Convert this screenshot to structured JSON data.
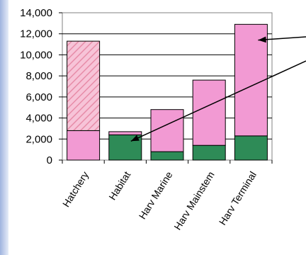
{
  "chart_data": {
    "type": "bar",
    "stacked": true,
    "categories": [
      "Hatchery",
      "Habitat",
      "Harv Marine",
      "Harv Mainstem",
      "Harv Terminal"
    ],
    "series": [
      {
        "values": [
          0,
          2400,
          800,
          1400,
          2300
        ],
        "color": "#2e8b57"
      },
      {
        "values": [
          2800,
          300,
          4000,
          6200,
          10600
        ],
        "color": "#f29ad3"
      },
      {
        "values": [
          8500,
          0,
          0,
          0,
          0
        ],
        "color": "#f2a3c4",
        "pattern": "diagonal-hatch"
      }
    ],
    "yticks": [
      "0",
      "2,000",
      "4,000",
      "6,000",
      "8,000",
      "10,000",
      "12,000",
      "14,000"
    ],
    "ylim": [
      0,
      14000
    ],
    "grid": true,
    "annotations": [
      {
        "type": "arrow",
        "points_to": "Harv Terminal"
      },
      {
        "type": "arrow",
        "points_to": "Habitat"
      }
    ]
  }
}
